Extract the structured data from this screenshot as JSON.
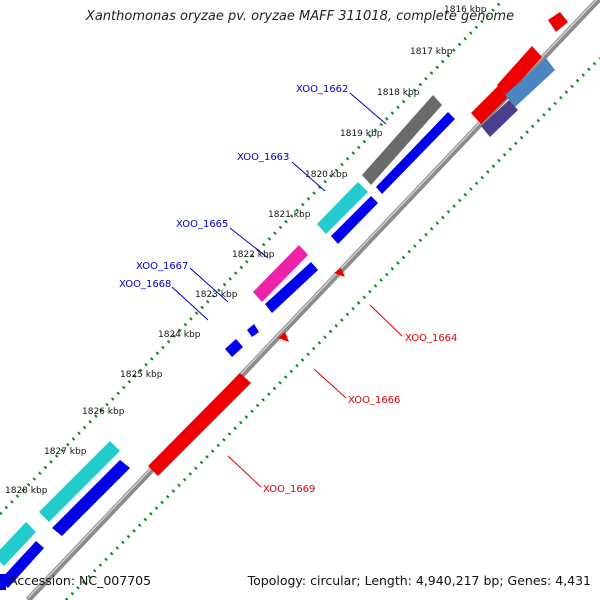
{
  "title": "Xanthomonas oryzae pv. oryzae MAFF 311018, complete genome",
  "footer": {
    "accession": "Accession: NC_007705",
    "summary": "Topology: circular; Length: 4,940,217 bp; Genes: 4,431"
  },
  "colors": {
    "backbone": "#8c8c8c",
    "tick_green": "#0a8a1a",
    "label_blue": "#0000cc",
    "label_red": "#dd0000",
    "gene_blue": "#0000ee",
    "gene_red": "#ee0000",
    "gene_cyan": "#22cccc",
    "gene_gray": "#6a6a6a",
    "gene_magenta": "#ee22aa",
    "gene_steelblue": "#4a86c0",
    "gene_purple": "#4a3f8a"
  },
  "scale_labels": [
    "1816 kbp",
    "1817 kbp",
    "1818 kbp",
    "1819 kbp",
    "1820 kbp",
    "1821 kbp",
    "1822 kbp",
    "1823 kbp",
    "1824 kbp",
    "1825 kbp",
    "1826 kbp",
    "1827 kbp",
    "1828 kbp"
  ],
  "gene_labels": [
    {
      "text": "XOO_1662",
      "strand": "forward"
    },
    {
      "text": "XOO_1663",
      "strand": "forward"
    },
    {
      "text": "XOO_1665",
      "strand": "forward"
    },
    {
      "text": "XOO_1667",
      "strand": "forward"
    },
    {
      "text": "XOO_1668",
      "strand": "forward"
    },
    {
      "text": "XOO_1664",
      "strand": "reverse"
    },
    {
      "text": "XOO_1666",
      "strand": "reverse"
    },
    {
      "text": "XOO_1669",
      "strand": "reverse"
    }
  ]
}
